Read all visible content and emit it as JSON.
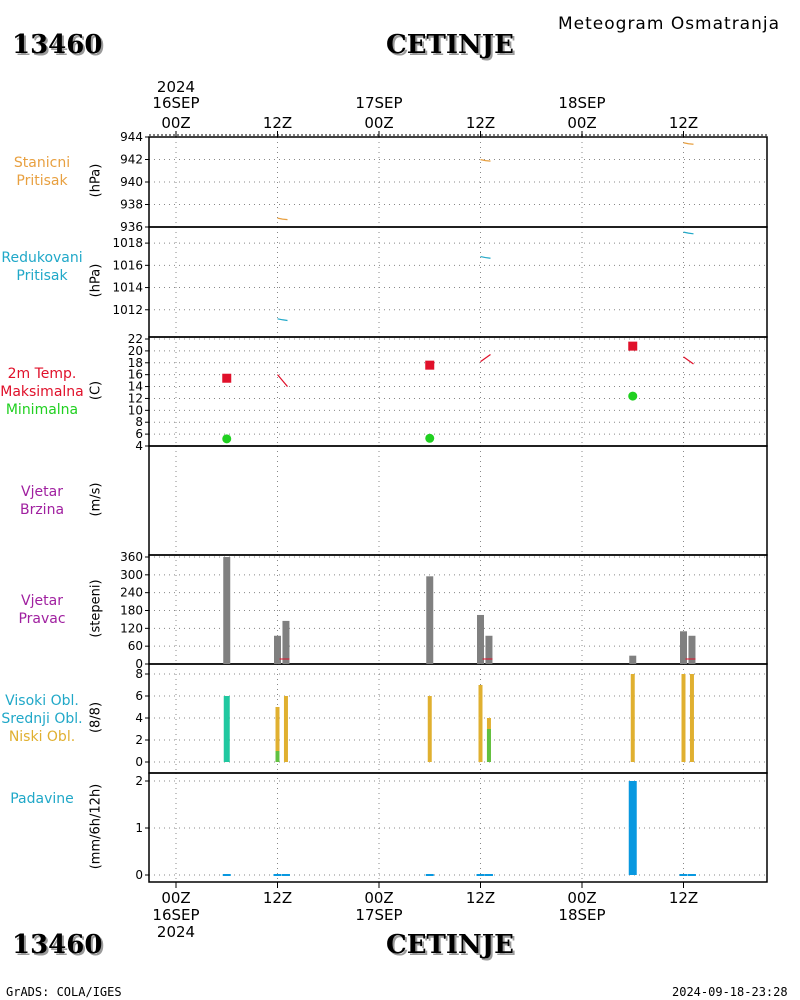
{
  "header": {
    "station_id": "13460",
    "station_name": "CETINJE",
    "subtitle": "Meteogram Osmatranja"
  },
  "footer": {
    "station_id": "13460",
    "station_name": "CETINJE",
    "credit": "GrADS: COLA/IGES",
    "timestamp": "2024-09-18-23:28"
  },
  "colors": {
    "pressure_station": "#e8a040",
    "pressure_reduced": "#20a8c8",
    "temp_max": "#e0102a",
    "temp_min": "#20d020",
    "wind": "#a020a0",
    "bars": "#808080",
    "high_cloud": "#20c8a0",
    "mid_cloud": "#60c040",
    "low_cloud": "#e0b030",
    "precip": "#0898e0"
  },
  "time_axis": {
    "top_labels": [
      {
        "year": "2024",
        "date": "16SEP",
        "hour": "00Z"
      },
      {
        "year": "",
        "date": "",
        "hour": "12Z"
      },
      {
        "year": "",
        "date": "17SEP",
        "hour": "00Z"
      },
      {
        "year": "",
        "date": "",
        "hour": "12Z"
      },
      {
        "year": "",
        "date": "18SEP",
        "hour": "00Z"
      },
      {
        "year": "",
        "date": "",
        "hour": "12Z"
      }
    ],
    "bottom_labels": [
      {
        "hour": "00Z",
        "date": "16SEP",
        "year": "2024"
      },
      {
        "hour": "12Z",
        "date": "",
        "year": ""
      },
      {
        "hour": "00Z",
        "date": "17SEP",
        "year": ""
      },
      {
        "hour": "12Z",
        "date": "",
        "year": ""
      },
      {
        "hour": "00Z",
        "date": "18SEP",
        "year": ""
      },
      {
        "hour": "12Z",
        "date": "",
        "year": ""
      }
    ]
  },
  "panels": [
    {
      "label_lines": [
        "Stanicni",
        "Pritisak"
      ],
      "label_color": "#e8a040",
      "unit": "(hPa)"
    },
    {
      "label_lines": [
        "Redukovani",
        "Pritisak"
      ],
      "label_color": "#20a8c8",
      "unit": "(hPa)"
    },
    {
      "label_lines": [
        "2m Temp.",
        "Maksimalna",
        "Minimalna"
      ],
      "label_colors": [
        "#e0102a",
        "#e0102a",
        "#20d020"
      ],
      "unit": "(C)"
    },
    {
      "label_lines": [
        "Vjetar",
        "Brzina"
      ],
      "label_color": "#a020a0",
      "unit": "(m/s)"
    },
    {
      "label_lines": [
        "Vjetar",
        "Pravac"
      ],
      "label_color": "#a020a0",
      "unit": "(stepeni)"
    },
    {
      "label_lines": [
        "Visoki Obl.",
        "Srednji Obl.",
        "Niski Obl."
      ],
      "label_colors": [
        "#20a8c8",
        "#20a8c8",
        "#e0b030"
      ],
      "unit": "(8/8)"
    },
    {
      "label_lines": [
        "Padavine"
      ],
      "label_color": "#20a8c8",
      "unit": "(mm/6h/12h)"
    }
  ],
  "chart_data": [
    {
      "type": "line",
      "panel": "station_pressure",
      "ylim": [
        936,
        944
      ],
      "yticks": [
        "944",
        "942",
        "940",
        "938",
        "936"
      ],
      "series": [
        {
          "x_hours": [
            12,
            36,
            60
          ],
          "values": [
            936.7,
            941.9,
            943.4
          ]
        }
      ]
    },
    {
      "type": "line",
      "panel": "reduced_pressure",
      "ylim": [
        1010,
        1019
      ],
      "yticks": [
        "1018",
        "1016",
        "1014",
        "1012"
      ],
      "series": [
        {
          "x_hours": [
            12,
            36,
            60
          ],
          "values": [
            1011.1,
            1016.7,
            1018.9
          ]
        }
      ]
    },
    {
      "type": "scatter",
      "panel": "temperature",
      "ylim": [
        4,
        22
      ],
      "yticks": [
        "22",
        "20",
        "18",
        "16",
        "14",
        "12",
        "10",
        "8",
        "6",
        "4"
      ],
      "max_points": {
        "x_hours": [
          6,
          30,
          54
        ],
        "values": [
          15.4,
          17.6,
          20.8
        ]
      },
      "min_points": {
        "x_hours": [
          6,
          30,
          54
        ],
        "values": [
          5.2,
          5.3,
          12.4
        ]
      },
      "obs_segments": [
        {
          "x_hours": 12,
          "from": 16,
          "to": 14
        },
        {
          "x_hours": 36,
          "from": 18.2,
          "to": 19.4
        },
        {
          "x_hours": 60,
          "from": 19.0,
          "to": 17.8
        }
      ]
    },
    {
      "type": "bar",
      "panel": "wind_speed",
      "values": []
    },
    {
      "type": "bar",
      "panel": "wind_direction",
      "ylim": [
        0,
        360
      ],
      "yticks": [
        "360",
        "300",
        "240",
        "180",
        "120",
        "60",
        "0"
      ],
      "x_hours": [
        6,
        12,
        13,
        30,
        36,
        37,
        54,
        60,
        61
      ],
      "values": [
        360,
        95,
        145,
        295,
        165,
        95,
        28,
        110,
        95
      ]
    },
    {
      "type": "bar",
      "panel": "clouds",
      "ylim": [
        0,
        8
      ],
      "yticks": [
        "8",
        "6",
        "4",
        "2",
        "0"
      ],
      "high": {
        "x_hours": [
          6
        ],
        "values": [
          6
        ]
      },
      "mid": {
        "x_hours": [
          12,
          37
        ],
        "values": [
          1,
          3
        ]
      },
      "low": {
        "x_hours": [
          12,
          13,
          30,
          36,
          37,
          54,
          60,
          61
        ],
        "values": [
          5,
          6,
          6,
          7,
          4,
          8,
          8,
          8
        ]
      }
    },
    {
      "type": "bar",
      "panel": "precipitation",
      "ylim": [
        0,
        2.1
      ],
      "yticks": [
        "2",
        "1",
        "0"
      ],
      "x_hours": [
        6,
        12,
        13,
        30,
        36,
        37,
        54,
        60,
        61
      ],
      "values": [
        0,
        0,
        0,
        0,
        0,
        0,
        2.0,
        0,
        0
      ]
    }
  ]
}
